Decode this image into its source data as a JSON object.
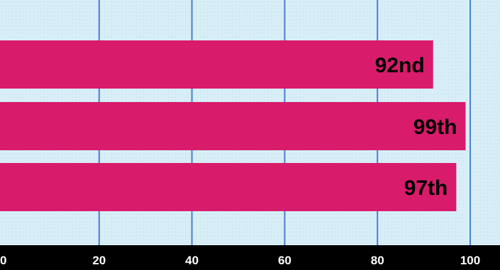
{
  "chart_data": {
    "type": "bar",
    "orientation": "horizontal",
    "categories": [
      "",
      "",
      ""
    ],
    "values": [
      92,
      99,
      97
    ],
    "data_labels": [
      "92nd",
      "99th",
      "97th"
    ],
    "xlim": [
      0,
      100
    ],
    "x_ticks": [
      0,
      20,
      40,
      60,
      80,
      100
    ],
    "x_tick_labels": [
      "0",
      "20",
      "40",
      "60",
      "80",
      "100"
    ],
    "grid": true,
    "title": "",
    "xlabel": "",
    "ylabel": ""
  },
  "colors": {
    "bar": "#d81b6a",
    "plot_background": "#d8eef7",
    "dot_grid": "#b6d9e6",
    "major_grid": "#4a7fd0",
    "axis_band": "#000000",
    "tick_text": "#ffffff",
    "label_text": "#000000"
  }
}
